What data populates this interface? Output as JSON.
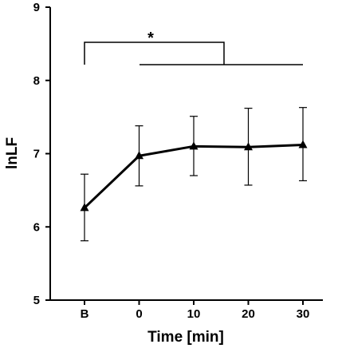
{
  "chart_data": {
    "type": "line",
    "xlabel": "Time [min]",
    "ylabel": "lnLF",
    "categories": [
      "B",
      "0",
      "10",
      "20",
      "30"
    ],
    "series": [
      {
        "values": [
          6.26,
          6.97,
          7.1,
          7.09,
          7.12
        ],
        "error_low": [
          5.81,
          6.56,
          6.7,
          6.57,
          6.63
        ],
        "error_high": [
          6.72,
          7.38,
          7.51,
          7.62,
          7.63
        ],
        "marker": "triangle",
        "color": "#000000"
      }
    ],
    "ylim": [
      5,
      9
    ],
    "yticks": [
      "5",
      "6",
      "7",
      "8",
      "9"
    ],
    "grid": false,
    "annotations": [
      {
        "text": "*",
        "type": "significance-bracket",
        "from": "B",
        "to": "0 to 30"
      }
    ]
  }
}
